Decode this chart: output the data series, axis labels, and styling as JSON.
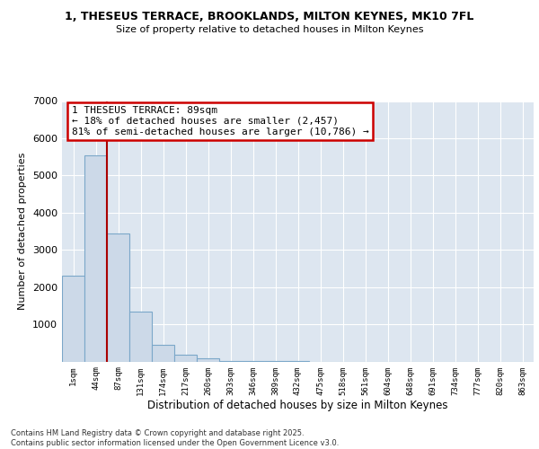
{
  "title1": "1, THESEUS TERRACE, BROOKLANDS, MILTON KEYNES, MK10 7FL",
  "title2": "Size of property relative to detached houses in Milton Keynes",
  "xlabel": "Distribution of detached houses by size in Milton Keynes",
  "ylabel": "Number of detached properties",
  "bin_labels": [
    "1sqm",
    "44sqm",
    "87sqm",
    "131sqm",
    "174sqm",
    "217sqm",
    "260sqm",
    "303sqm",
    "346sqm",
    "389sqm",
    "432sqm",
    "475sqm",
    "518sqm",
    "561sqm",
    "604sqm",
    "648sqm",
    "691sqm",
    "734sqm",
    "777sqm",
    "820sqm",
    "863sqm"
  ],
  "bar_values": [
    2300,
    5550,
    3450,
    1350,
    450,
    180,
    75,
    20,
    5,
    2,
    1,
    0,
    0,
    0,
    0,
    0,
    0,
    0,
    0,
    0,
    0
  ],
  "bar_color": "#ccd9e8",
  "bar_edge_color": "#7ba7c9",
  "vline_color": "#aa0000",
  "annotation_text": "1 THESEUS TERRACE: 89sqm\n← 18% of detached houses are smaller (2,457)\n81% of semi-detached houses are larger (10,786) →",
  "annotation_box_color": "#cc0000",
  "ylim": [
    0,
    7000
  ],
  "yticks": [
    0,
    1000,
    2000,
    3000,
    4000,
    5000,
    6000,
    7000
  ],
  "bg_color": "#dde6f0",
  "grid_color": "#ffffff",
  "footer1": "Contains HM Land Registry data © Crown copyright and database right 2025.",
  "footer2": "Contains public sector information licensed under the Open Government Licence v3.0."
}
